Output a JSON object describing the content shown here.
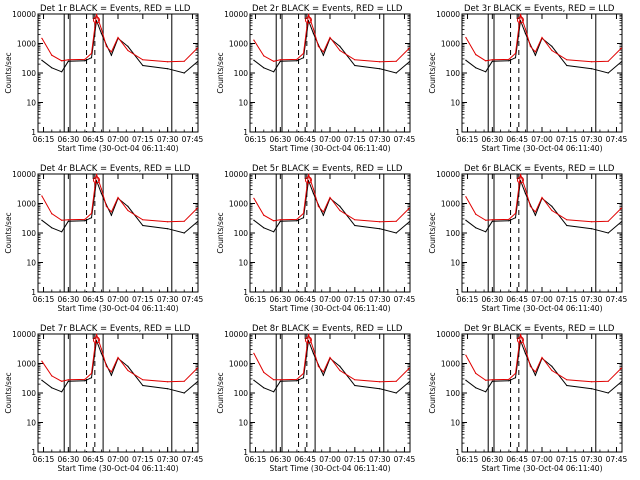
{
  "figure": {
    "ylabel": "Counts/sec",
    "xlabel": "Start Time (30-Oct-04 06:11:40)",
    "x_ticks": [
      "06:15",
      "06:30",
      "06:45",
      "07:00",
      "07:15",
      "07:30",
      "07:45"
    ],
    "y_ticks": [
      "1",
      "10",
      "100",
      "1000",
      "10000"
    ],
    "colors": {
      "events": "#000000",
      "lld": "#e00000",
      "background": "#ffffff"
    }
  },
  "chart_data": [
    {
      "type": "line",
      "title": "Det 1r  BLACK = Events, RED = LLD",
      "ylabel": "Counts/sec",
      "xlabel": "Start Time (30-Oct-04 06:11:40)",
      "ylim": [
        1,
        10000
      ],
      "y_scale": "log",
      "x_ticks": [
        "06:15",
        "06:30",
        "06:45",
        "07:00",
        "07:15",
        "07:30",
        "07:45"
      ],
      "y_ticks": [
        1,
        10,
        100,
        1000,
        10000
      ],
      "x": [
        "06:14",
        "06:20",
        "06:26",
        "06:30",
        "06:40",
        "06:44",
        "06:47",
        "06:50",
        "06:53",
        "06:56",
        "07:00",
        "07:06",
        "07:15",
        "07:30",
        "07:40",
        "07:48"
      ],
      "series": [
        {
          "name": "Events",
          "values": [
            270,
            150,
            110,
            250,
            260,
            330,
            6000,
            2200,
            900,
            400,
            1500,
            800,
            180,
            140,
            100,
            240
          ]
        },
        {
          "name": "LLD",
          "values": [
            1500,
            400,
            260,
            280,
            290,
            460,
            9800,
            3100,
            800,
            520,
            1600,
            580,
            280,
            240,
            250,
            700
          ]
        }
      ]
    },
    {
      "type": "line",
      "title": "Det 2r  BLACK = Events, RED = LLD",
      "ylabel": "Counts/sec",
      "xlabel": "Start Time (30-Oct-04 06:11:40)",
      "ylim": [
        1,
        10000
      ],
      "y_scale": "log",
      "x_ticks": [
        "06:15",
        "06:30",
        "06:45",
        "07:00",
        "07:15",
        "07:30",
        "07:45"
      ],
      "y_ticks": [
        1,
        10,
        100,
        1000,
        10000
      ],
      "x": [
        "06:14",
        "06:20",
        "06:26",
        "06:30",
        "06:40",
        "06:44",
        "06:47",
        "06:50",
        "06:53",
        "06:56",
        "07:00",
        "07:06",
        "07:15",
        "07:30",
        "07:40",
        "07:48"
      ],
      "series": [
        {
          "name": "Events",
          "values": [
            270,
            150,
            110,
            250,
            260,
            330,
            6000,
            2200,
            900,
            400,
            1500,
            800,
            180,
            140,
            100,
            240
          ]
        },
        {
          "name": "LLD",
          "values": [
            1300,
            380,
            250,
            280,
            290,
            460,
            9800,
            3100,
            800,
            520,
            1600,
            580,
            280,
            240,
            250,
            700
          ]
        }
      ]
    },
    {
      "type": "line",
      "title": "Det 3r  BLACK = Events, RED = LLD",
      "ylabel": "Counts/sec",
      "xlabel": "Start Time (30-Oct-04 06:11:40)",
      "ylim": [
        1,
        10000
      ],
      "y_scale": "log",
      "x_ticks": [
        "06:15",
        "06:30",
        "06:45",
        "07:00",
        "07:15",
        "07:30",
        "07:45"
      ],
      "y_ticks": [
        1,
        10,
        100,
        1000,
        10000
      ],
      "x": [
        "06:14",
        "06:20",
        "06:26",
        "06:30",
        "06:40",
        "06:44",
        "06:47",
        "06:50",
        "06:53",
        "06:56",
        "07:00",
        "07:06",
        "07:15",
        "07:30",
        "07:40",
        "07:48"
      ],
      "series": [
        {
          "name": "Events",
          "values": [
            270,
            150,
            110,
            250,
            260,
            330,
            6000,
            2200,
            900,
            400,
            1500,
            800,
            180,
            140,
            100,
            240
          ]
        },
        {
          "name": "LLD",
          "values": [
            1600,
            420,
            260,
            280,
            290,
            460,
            9800,
            3100,
            800,
            520,
            1600,
            580,
            280,
            240,
            250,
            700
          ]
        }
      ]
    },
    {
      "type": "line",
      "title": "Det 4r  BLACK = Events, RED = LLD",
      "ylabel": "Counts/sec",
      "xlabel": "Start Time (30-Oct-04 06:11:40)",
      "ylim": [
        1,
        10000
      ],
      "y_scale": "log",
      "x_ticks": [
        "06:15",
        "06:30",
        "06:45",
        "07:00",
        "07:15",
        "07:30",
        "07:45"
      ],
      "y_ticks": [
        1,
        10,
        100,
        1000,
        10000
      ],
      "x": [
        "06:14",
        "06:20",
        "06:26",
        "06:30",
        "06:40",
        "06:44",
        "06:47",
        "06:50",
        "06:53",
        "06:56",
        "07:00",
        "07:06",
        "07:15",
        "07:30",
        "07:40",
        "07:48"
      ],
      "series": [
        {
          "name": "Events",
          "values": [
            270,
            150,
            110,
            250,
            260,
            330,
            6000,
            2200,
            900,
            400,
            1500,
            800,
            180,
            140,
            100,
            240
          ]
        },
        {
          "name": "LLD",
          "values": [
            1800,
            450,
            270,
            280,
            290,
            460,
            9800,
            3100,
            800,
            520,
            1600,
            580,
            280,
            240,
            250,
            700
          ]
        }
      ]
    },
    {
      "type": "line",
      "title": "Det 5r  BLACK = Events, RED = LLD",
      "ylabel": "Counts/sec",
      "xlabel": "Start Time (30-Oct-04 06:11:40)",
      "ylim": [
        1,
        10000
      ],
      "y_scale": "log",
      "x_ticks": [
        "06:15",
        "06:30",
        "06:45",
        "07:00",
        "07:15",
        "07:30",
        "07:45"
      ],
      "y_ticks": [
        1,
        10,
        100,
        1000,
        10000
      ],
      "x": [
        "06:14",
        "06:20",
        "06:26",
        "06:30",
        "06:40",
        "06:44",
        "06:47",
        "06:50",
        "06:53",
        "06:56",
        "07:00",
        "07:06",
        "07:15",
        "07:30",
        "07:40",
        "07:48"
      ],
      "series": [
        {
          "name": "Events",
          "values": [
            270,
            150,
            110,
            250,
            260,
            330,
            6000,
            2200,
            900,
            400,
            1500,
            800,
            180,
            140,
            100,
            240
          ]
        },
        {
          "name": "LLD",
          "values": [
            1500,
            400,
            260,
            280,
            290,
            460,
            9800,
            3100,
            800,
            520,
            1600,
            580,
            280,
            240,
            250,
            700
          ]
        }
      ]
    },
    {
      "type": "line",
      "title": "Det 6r  BLACK = Events, RED = LLD",
      "ylabel": "Counts/sec",
      "xlabel": "Start Time (30-Oct-04 06:11:40)",
      "ylim": [
        1,
        10000
      ],
      "y_scale": "log",
      "x_ticks": [
        "06:15",
        "06:30",
        "06:45",
        "07:00",
        "07:15",
        "07:30",
        "07:45"
      ],
      "y_ticks": [
        1,
        10,
        100,
        1000,
        10000
      ],
      "x": [
        "06:14",
        "06:20",
        "06:26",
        "06:30",
        "06:40",
        "06:44",
        "06:47",
        "06:50",
        "06:53",
        "06:56",
        "07:00",
        "07:06",
        "07:15",
        "07:30",
        "07:40",
        "07:48"
      ],
      "series": [
        {
          "name": "Events",
          "values": [
            270,
            150,
            110,
            250,
            260,
            330,
            6000,
            2200,
            900,
            400,
            1500,
            800,
            180,
            140,
            100,
            240
          ]
        },
        {
          "name": "LLD",
          "values": [
            1700,
            430,
            270,
            280,
            290,
            460,
            9800,
            3100,
            800,
            520,
            1600,
            580,
            280,
            240,
            250,
            700
          ]
        }
      ]
    },
    {
      "type": "line",
      "title": "Det 7r  BLACK = Events, RED = LLD",
      "ylabel": "Counts/sec",
      "xlabel": "Start Time (30-Oct-04 06:11:40)",
      "ylim": [
        1,
        10000
      ],
      "y_scale": "log",
      "x_ticks": [
        "06:15",
        "06:30",
        "06:45",
        "07:00",
        "07:15",
        "07:30",
        "07:45"
      ],
      "y_ticks": [
        1,
        10,
        100,
        1000,
        10000
      ],
      "x": [
        "06:14",
        "06:20",
        "06:26",
        "06:30",
        "06:40",
        "06:44",
        "06:47",
        "06:50",
        "06:53",
        "06:56",
        "07:00",
        "07:06",
        "07:15",
        "07:30",
        "07:40",
        "07:48"
      ],
      "series": [
        {
          "name": "Events",
          "values": [
            270,
            150,
            110,
            250,
            260,
            330,
            6000,
            2200,
            900,
            400,
            1500,
            800,
            180,
            140,
            100,
            240
          ]
        },
        {
          "name": "LLD",
          "values": [
            1200,
            380,
            250,
            280,
            290,
            460,
            9800,
            3100,
            800,
            520,
            1600,
            580,
            280,
            240,
            250,
            700
          ]
        }
      ]
    },
    {
      "type": "line",
      "title": "Det 8r  BLACK = Events, RED = LLD",
      "ylabel": "Counts/sec",
      "xlabel": "Start Time (30-Oct-04 06:11:40)",
      "ylim": [
        1,
        10000
      ],
      "y_scale": "log",
      "x_ticks": [
        "06:15",
        "06:30",
        "06:45",
        "07:00",
        "07:15",
        "07:30",
        "07:45"
      ],
      "y_ticks": [
        1,
        10,
        100,
        1000,
        10000
      ],
      "x": [
        "06:14",
        "06:20",
        "06:26",
        "06:30",
        "06:40",
        "06:44",
        "06:47",
        "06:50",
        "06:53",
        "06:56",
        "07:00",
        "07:06",
        "07:15",
        "07:30",
        "07:40",
        "07:48"
      ],
      "series": [
        {
          "name": "Events",
          "values": [
            270,
            150,
            110,
            250,
            260,
            330,
            6000,
            2200,
            900,
            400,
            1500,
            800,
            180,
            140,
            100,
            240
          ]
        },
        {
          "name": "LLD",
          "values": [
            2200,
            500,
            280,
            280,
            290,
            460,
            9800,
            3100,
            800,
            520,
            1600,
            580,
            280,
            240,
            250,
            700
          ]
        }
      ]
    },
    {
      "type": "line",
      "title": "Det 9r  BLACK = Events, RED = LLD",
      "ylabel": "Counts/sec",
      "xlabel": "Start Time (30-Oct-04 06:11:40)",
      "ylim": [
        1,
        10000
      ],
      "y_scale": "log",
      "x_ticks": [
        "06:15",
        "06:30",
        "06:45",
        "07:00",
        "07:15",
        "07:30",
        "07:45"
      ],
      "y_ticks": [
        1,
        10,
        100,
        1000,
        10000
      ],
      "x": [
        "06:14",
        "06:20",
        "06:26",
        "06:30",
        "06:40",
        "06:44",
        "06:47",
        "06:50",
        "06:53",
        "06:56",
        "07:00",
        "07:06",
        "07:15",
        "07:30",
        "07:40",
        "07:48"
      ],
      "series": [
        {
          "name": "Events",
          "values": [
            270,
            150,
            110,
            250,
            260,
            330,
            6000,
            2200,
            900,
            400,
            1500,
            800,
            180,
            140,
            100,
            240
          ]
        },
        {
          "name": "LLD",
          "values": [
            1900,
            460,
            270,
            280,
            290,
            460,
            9800,
            3100,
            800,
            520,
            1600,
            580,
            280,
            240,
            250,
            700
          ]
        }
      ]
    }
  ]
}
